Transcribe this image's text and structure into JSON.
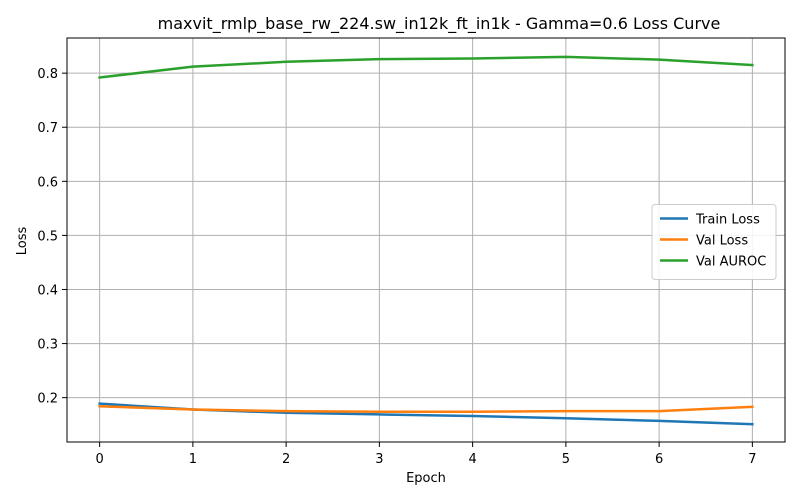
{
  "chart_data": {
    "type": "line",
    "title": "maxvit_rmlp_base_rw_224.sw_in12k_ft_in1k - Gamma=0.6 Loss Curve",
    "xlabel": "Epoch",
    "ylabel": "Loss",
    "x": [
      0,
      1,
      2,
      3,
      4,
      5,
      6,
      7
    ],
    "xlim": [
      -0.35,
      7.35
    ],
    "ylim": [
      0.118,
      0.865
    ],
    "xticks": [
      0,
      1,
      2,
      3,
      4,
      5,
      6,
      7
    ],
    "yticks": [
      0.2,
      0.3,
      0.4,
      0.5,
      0.6,
      0.7,
      0.8
    ],
    "ytick_labels": [
      "0.2",
      "0.3",
      "0.4",
      "0.5",
      "0.6",
      "0.7",
      "0.8"
    ],
    "grid": true,
    "legend_position": "center-right",
    "series": [
      {
        "name": "Train Loss",
        "color": "#1f77b4",
        "values": [
          0.189,
          0.178,
          0.172,
          0.169,
          0.166,
          0.162,
          0.157,
          0.151
        ]
      },
      {
        "name": "Val Loss",
        "color": "#ff7f0e",
        "values": [
          0.184,
          0.178,
          0.175,
          0.174,
          0.174,
          0.175,
          0.175,
          0.183
        ]
      },
      {
        "name": "Val AUROC",
        "color": "#2ca02c",
        "values": [
          0.792,
          0.812,
          0.821,
          0.826,
          0.827,
          0.83,
          0.825,
          0.815
        ]
      }
    ]
  }
}
